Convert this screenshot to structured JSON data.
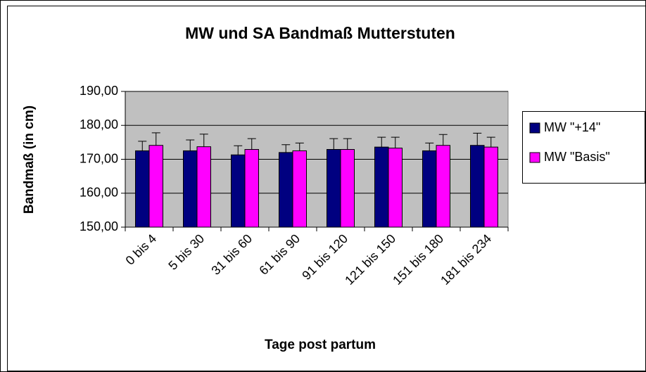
{
  "chart_data": {
    "type": "bar",
    "title": "MW und SA Bandmaß Mutterstuten",
    "x_label": "Tage post partum",
    "y_label": "Bandmaß (in cm)",
    "categories": [
      "0 bis 4",
      "5 bis 30",
      "31 bis 60",
      "61 bis  90",
      "91 bis 120",
      "121 bis 150",
      "151 bis 180",
      "181 bis 234"
    ],
    "series": [
      {
        "name": "MW \"+14\"",
        "color": "#000080",
        "values": [
          172.5,
          172.5,
          171.3,
          172.0,
          172.9,
          173.6,
          172.5,
          174.1
        ],
        "errors": [
          2.8,
          3.2,
          2.7,
          2.3,
          3.2,
          2.9,
          2.3,
          3.6
        ]
      },
      {
        "name": "MW \"Basis\"",
        "color": "#ff00ff",
        "values": [
          174.1,
          173.7,
          172.9,
          172.5,
          172.9,
          173.3,
          174.1,
          173.6
        ],
        "errors": [
          3.7,
          3.7,
          3.2,
          2.3,
          3.2,
          3.2,
          3.2,
          2.9
        ]
      }
    ],
    "ylim": [
      150,
      190
    ],
    "yticks": [
      {
        "value": 150,
        "label": "150,00"
      },
      {
        "value": 160,
        "label": "160,00"
      },
      {
        "value": 170,
        "label": "170,00"
      },
      {
        "value": 180,
        "label": "180,00"
      },
      {
        "value": 190,
        "label": "190,00"
      }
    ],
    "grid": true,
    "legend": "right"
  }
}
